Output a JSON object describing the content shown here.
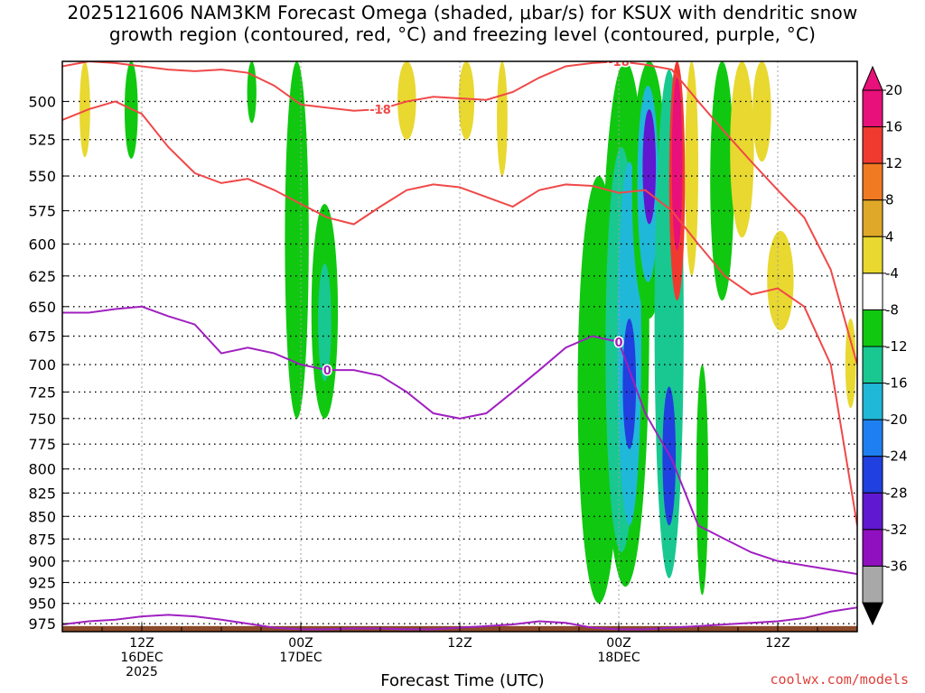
{
  "title_line1": "2025121606 NAM3KM Forecast Omega (shaded, μbar/s) for KSUX with dendritic snow",
  "title_line2": "growth region (contoured, red, °C) and freezing level (contoured, purple, °C)",
  "credit": "coolwx.com/models",
  "chart_data": {
    "type": "heatmap",
    "title": "2025121606 NAM3KM Forecast Omega (shaded, μbar/s) for KSUX with dendritic snow growth region (contoured, red, °C) and freezing level (contoured, purple, °C)",
    "xlabel": "Forecast Time (UTC)",
    "ylabel": "",
    "x_range_hours": [
      6,
      66
    ],
    "x_ticks": [
      {
        "hour": 12,
        "label": [
          "12Z",
          "16DEC",
          "2025"
        ]
      },
      {
        "hour": 24,
        "label": [
          "00Z",
          "17DEC"
        ]
      },
      {
        "hour": 36,
        "label": [
          "12Z"
        ]
      },
      {
        "hour": 48,
        "label": [
          "00Z",
          "18DEC"
        ]
      },
      {
        "hour": 60,
        "label": [
          "12Z"
        ]
      }
    ],
    "y_levels_hPa": [
      500,
      525,
      550,
      575,
      600,
      625,
      650,
      675,
      700,
      725,
      750,
      775,
      800,
      825,
      850,
      875,
      900,
      925,
      950,
      975
    ],
    "y_range_hPa": [
      475,
      985
    ],
    "y_scale": "log-pressure",
    "grid": true,
    "colorbar": {
      "labels": [
        "20",
        "16",
        "12",
        "8",
        "4",
        "-4",
        "-8",
        "-12",
        "-16",
        "-20",
        "-24",
        "-28",
        "-32",
        "-36"
      ],
      "bins": [
        {
          "from": 20,
          "to": 24,
          "color": "#e8107a"
        },
        {
          "from": 16,
          "to": 20,
          "color": "#f03a30"
        },
        {
          "from": 12,
          "to": 16,
          "color": "#f07a22"
        },
        {
          "from": 8,
          "to": 12,
          "color": "#e0a828"
        },
        {
          "from": 4,
          "to": 8,
          "color": "#e8d830"
        },
        {
          "from": -4,
          "to": 4,
          "color": "#ffffff"
        },
        {
          "from": -8,
          "to": -4,
          "color": "#10c810"
        },
        {
          "from": -12,
          "to": -8,
          "color": "#18c890"
        },
        {
          "from": -16,
          "to": -12,
          "color": "#20b8d8"
        },
        {
          "from": -20,
          "to": -16,
          "color": "#1e80f0"
        },
        {
          "from": -24,
          "to": -20,
          "color": "#2040e0"
        },
        {
          "from": -28,
          "to": -24,
          "color": "#6018d0"
        },
        {
          "from": -32,
          "to": -28,
          "color": "#9010c0"
        },
        {
          "from": -36,
          "to": -32,
          "color": "#a8a8a8"
        }
      ]
    },
    "omega_areas": [
      {
        "t": 7.7,
        "p": 482,
        "dt": 0.4,
        "hw": 55,
        "color": "#e8d830"
      },
      {
        "t": 11.2,
        "p": 498,
        "dt": 0.5,
        "hw": 40,
        "color": "#10c810"
      },
      {
        "t": 20.3,
        "p": 494,
        "dt": 0.35,
        "hw": 20,
        "color": "#10c810"
      },
      {
        "t": 23.7,
        "p": 600,
        "dt": 0.9,
        "hw": 150,
        "color": "#10c810"
      },
      {
        "t": 25.8,
        "p": 660,
        "dt": 1.0,
        "hw": 90,
        "color": "#10c810"
      },
      {
        "t": 25.8,
        "p": 665,
        "dt": 0.5,
        "hw": 50,
        "color": "#18c890"
      },
      {
        "t": 32.0,
        "p": 495,
        "dt": 0.7,
        "hw": 30,
        "color": "#e8d830"
      },
      {
        "t": 36.5,
        "p": 500,
        "dt": 0.6,
        "hw": 25,
        "color": "#e8d830"
      },
      {
        "t": 39.2,
        "p": 500,
        "dt": 0.4,
        "hw": 50,
        "color": "#e8d830"
      },
      {
        "t": 46.5,
        "p": 750,
        "dt": 1.6,
        "hw": 200,
        "color": "#10c810"
      },
      {
        "t": 48.5,
        "p": 690,
        "dt": 1.8,
        "hw": 240,
        "color": "#10c810"
      },
      {
        "t": 48.2,
        "p": 710,
        "dt": 1.2,
        "hw": 180,
        "color": "#18c890"
      },
      {
        "t": 48.8,
        "p": 700,
        "dt": 0.9,
        "hw": 160,
        "color": "#20b8d8"
      },
      {
        "t": 48.8,
        "p": 720,
        "dt": 0.5,
        "hw": 60,
        "color": "#2040e0"
      },
      {
        "t": 50.3,
        "p": 560,
        "dt": 1.3,
        "hw": 100,
        "color": "#10c810"
      },
      {
        "t": 50.2,
        "p": 560,
        "dt": 0.8,
        "hw": 70,
        "color": "#20b8d8"
      },
      {
        "t": 50.3,
        "p": 545,
        "dt": 0.5,
        "hw": 40,
        "color": "#6018d0"
      },
      {
        "t": 51.8,
        "p": 700,
        "dt": 1.1,
        "hw": 220,
        "color": "#18c890"
      },
      {
        "t": 51.8,
        "p": 790,
        "dt": 0.5,
        "hw": 70,
        "color": "#2040e0"
      },
      {
        "t": 52.4,
        "p": 555,
        "dt": 0.6,
        "hw": 90,
        "color": "#f03a30"
      },
      {
        "t": 52.4,
        "p": 545,
        "dt": 0.4,
        "hw": 60,
        "color": "#e8107a"
      },
      {
        "t": 53.5,
        "p": 545,
        "dt": 0.5,
        "hw": 80,
        "color": "#e8d830"
      },
      {
        "t": 54.3,
        "p": 820,
        "dt": 0.45,
        "hw": 120,
        "color": "#10c810"
      },
      {
        "t": 55.8,
        "p": 560,
        "dt": 0.9,
        "hw": 85,
        "color": "#10c810"
      },
      {
        "t": 57.3,
        "p": 525,
        "dt": 0.9,
        "hw": 70,
        "color": "#e8d830"
      },
      {
        "t": 58.8,
        "p": 500,
        "dt": 0.7,
        "hw": 40,
        "color": "#e8d830"
      },
      {
        "t": 60.2,
        "p": 630,
        "dt": 1.0,
        "hw": 40,
        "color": "#e8d830"
      },
      {
        "t": 65.5,
        "p": 700,
        "dt": 0.4,
        "hw": 40,
        "color": "#e8d830"
      }
    ],
    "series": [
      {
        "name": "-18",
        "color": "#f04848",
        "x": [
          6,
          8,
          10,
          12,
          14,
          16,
          18,
          20,
          22,
          24,
          26,
          28,
          30,
          32,
          34,
          36,
          38,
          40,
          42,
          44,
          46,
          48,
          50,
          52,
          54,
          56,
          58,
          60,
          62,
          64,
          66
        ],
        "y": [
          512,
          505,
          500,
          508,
          530,
          548,
          555,
          552,
          560,
          570,
          580,
          585,
          572,
          560,
          556,
          558,
          565,
          572,
          560,
          556,
          557,
          562,
          560,
          575,
          600,
          625,
          640,
          635,
          650,
          700,
          860
        ]
      },
      {
        "name": "-18",
        "color": "#f04848",
        "x": [
          6,
          8,
          10,
          12,
          14,
          16,
          18,
          20,
          22,
          24,
          26,
          28,
          30,
          32,
          34,
          36,
          38,
          40,
          42,
          44,
          46,
          48,
          50,
          52,
          54,
          56,
          58,
          60,
          62,
          64,
          66
        ],
        "y": [
          478,
          475,
          476,
          478,
          480,
          481,
          480,
          482,
          490,
          502,
          504,
          506,
          505,
          500,
          497,
          498,
          499,
          494,
          485,
          478,
          476,
          475,
          477,
          480,
          500,
          520,
          540,
          560,
          580,
          620,
          700
        ]
      },
      {
        "name": "0",
        "color": "#a020c0",
        "x": [
          6,
          8,
          10,
          12,
          14,
          16,
          18,
          20,
          22,
          24,
          26,
          28,
          30,
          32,
          34,
          36,
          38,
          40,
          42,
          44,
          46,
          48,
          50,
          52,
          54,
          56,
          58,
          60,
          62,
          64,
          66
        ],
        "y": [
          655,
          655,
          652,
          650,
          658,
          665,
          690,
          685,
          690,
          700,
          705,
          705,
          710,
          725,
          745,
          750,
          745,
          725,
          705,
          685,
          675,
          680,
          745,
          790,
          860,
          875,
          890,
          900,
          905,
          910,
          915
        ]
      },
      {
        "name": "0",
        "color": "#a020c0",
        "x": [
          6,
          8,
          10,
          12,
          14,
          16,
          18,
          20,
          22,
          24,
          26,
          28,
          30,
          32,
          34,
          36,
          38,
          40,
          42,
          44,
          46,
          48,
          50,
          52,
          54,
          56,
          58,
          60,
          62,
          64,
          66
        ],
        "y": [
          976,
          972,
          970,
          966,
          964,
          966,
          970,
          975,
          980,
          982,
          982,
          981,
          981,
          982,
          982,
          980,
          978,
          976,
          972,
          974,
          980,
          982,
          982,
          980,
          978,
          976,
          974,
          972,
          968,
          960,
          955
        ]
      }
    ]
  }
}
